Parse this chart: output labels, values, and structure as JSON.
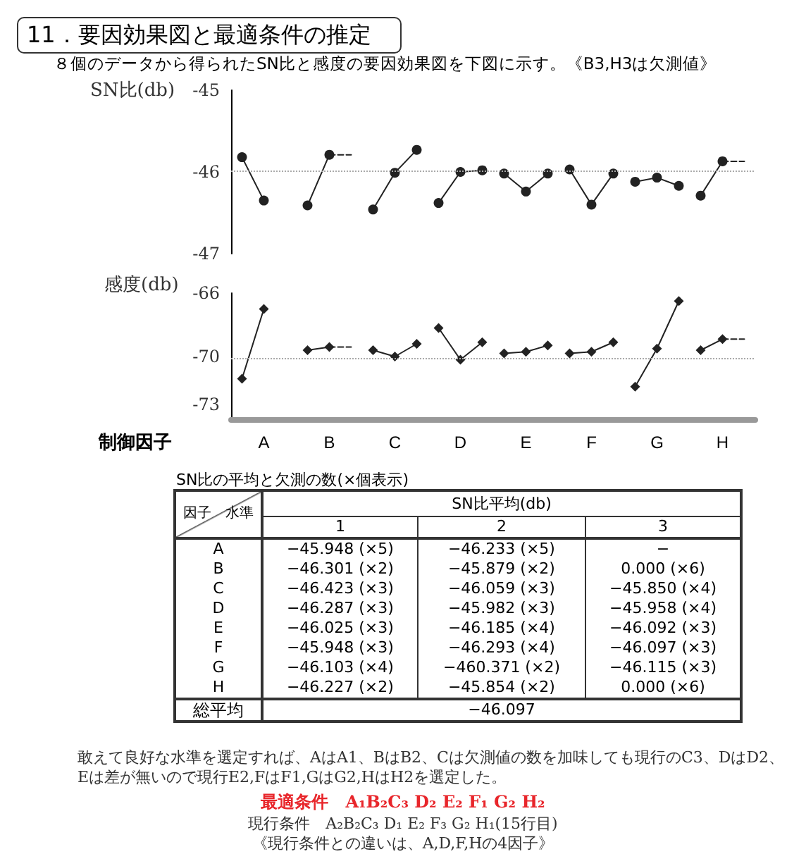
{
  "chart_data": [
    {
      "type": "line",
      "title": "11．要因効果図と最適条件の推定",
      "subtitle": "８個のデータから得られたSN比と感度の要因効果図を下図に示す。《B3,H3は欠測値》",
      "ylabel": "SN比(db)",
      "categories": [
        null,
        null,
        null,
        null,
        null,
        null,
        null,
        null,
        null,
        null,
        null,
        null,
        null,
        null,
        null,
        null,
        null,
        null,
        null,
        null,
        null,
        null,
        null,
        null
      ],
      "ylim": [
        -47,
        -45
      ],
      "yticks": [
        -47,
        -46,
        -45
      ],
      "tick_labels": "y",
      "marker": "circle",
      "ref_lines": [
        {
          "axis": "y",
          "value": -45.98,
          "color": "#aaaaaa",
          "line_style": "dotted"
        }
      ],
      "series": [
        {
          "color": "#222222",
          "values": [
            -45.82,
            -46.35,
            null,
            null,
            null,
            null,
            null,
            null,
            null,
            null,
            null,
            null,
            null,
            null,
            null,
            null,
            null,
            null,
            null,
            null,
            null,
            null,
            null,
            null
          ]
        },
        {
          "color": "#222222",
          "values": [
            null,
            null,
            null,
            -46.41,
            -45.79,
            null,
            null,
            null,
            null,
            null,
            null,
            null,
            null,
            null,
            null,
            null,
            null,
            null,
            null,
            null,
            null,
            null,
            null,
            null
          ]
        },
        {
          "color": "#222222",
          "marker": "none",
          "line_style": "dashed",
          "values": [
            null,
            null,
            null,
            null,
            -45.79,
            -45.79,
            null,
            null,
            null,
            null,
            null,
            null,
            null,
            null,
            null,
            null,
            null,
            null,
            null,
            null,
            null,
            null,
            null,
            null
          ]
        },
        {
          "color": "#222222",
          "values": [
            null,
            null,
            null,
            null,
            null,
            null,
            -46.46,
            -46.01,
            -45.73,
            null,
            null,
            null,
            null,
            null,
            null,
            null,
            null,
            null,
            null,
            null,
            null,
            null,
            null,
            null
          ]
        },
        {
          "color": "#222222",
          "values": [
            null,
            null,
            null,
            null,
            null,
            null,
            null,
            null,
            null,
            -46.38,
            -46.0,
            -45.98,
            null,
            null,
            null,
            null,
            null,
            null,
            null,
            null,
            null,
            null,
            null,
            null
          ]
        },
        {
          "color": "#222222",
          "values": [
            null,
            null,
            null,
            null,
            null,
            null,
            null,
            null,
            null,
            null,
            null,
            null,
            -46.02,
            -46.24,
            -46.02,
            null,
            null,
            null,
            null,
            null,
            null,
            null,
            null,
            null
          ]
        },
        {
          "color": "#222222",
          "values": [
            null,
            null,
            null,
            null,
            null,
            null,
            null,
            null,
            null,
            null,
            null,
            null,
            null,
            null,
            null,
            -45.97,
            -46.4,
            -46.02,
            null,
            null,
            null,
            null,
            null,
            null
          ]
        },
        {
          "color": "#222222",
          "values": [
            null,
            null,
            null,
            null,
            null,
            null,
            null,
            null,
            null,
            null,
            null,
            null,
            null,
            null,
            null,
            null,
            null,
            null,
            -46.12,
            -46.07,
            -46.17,
            null,
            null,
            null
          ]
        },
        {
          "color": "#222222",
          "values": [
            null,
            null,
            null,
            null,
            null,
            null,
            null,
            null,
            null,
            null,
            null,
            null,
            null,
            null,
            null,
            null,
            null,
            null,
            null,
            null,
            null,
            -46.29,
            -45.87,
            null
          ]
        },
        {
          "color": "#222222",
          "marker": "none",
          "line_style": "dashed",
          "values": [
            null,
            null,
            null,
            null,
            null,
            null,
            null,
            null,
            null,
            null,
            null,
            null,
            null,
            null,
            null,
            null,
            null,
            null,
            null,
            null,
            null,
            null,
            -45.87,
            -45.87
          ]
        }
      ]
    },
    {
      "type": "line",
      "ylabel": "感度(db)",
      "xlabel": "制御因子",
      "categories": [
        null,
        "A",
        null,
        null,
        "B",
        null,
        null,
        "C",
        null,
        null,
        "D",
        null,
        null,
        "E",
        null,
        null,
        "F",
        null,
        null,
        "G",
        null,
        null,
        "H",
        null
      ],
      "ylim": [
        -74,
        -66
      ],
      "yticks": [
        -73,
        -70,
        -66
      ],
      "marker": "diamond",
      "ref_lines": [
        {
          "axis": "y",
          "value": -70.1,
          "color": "#aaaaaa",
          "line_style": "dotted"
        }
      ],
      "series": [
        {
          "color": "#222222",
          "values": [
            -71.4,
            -67.0,
            null,
            null,
            null,
            null,
            null,
            null,
            null,
            null,
            null,
            null,
            null,
            null,
            null,
            null,
            null,
            null,
            null,
            null,
            null,
            null,
            null,
            null
          ]
        },
        {
          "color": "#222222",
          "values": [
            null,
            null,
            null,
            -69.6,
            -69.4,
            null,
            null,
            null,
            null,
            null,
            null,
            null,
            null,
            null,
            null,
            null,
            null,
            null,
            null,
            null,
            null,
            null,
            null,
            null
          ]
        },
        {
          "color": "#222222",
          "marker": "none",
          "line_style": "dashed",
          "values": [
            null,
            null,
            null,
            null,
            -69.4,
            -69.4,
            null,
            null,
            null,
            null,
            null,
            null,
            null,
            null,
            null,
            null,
            null,
            null,
            null,
            null,
            null,
            null,
            null,
            null
          ]
        },
        {
          "color": "#222222",
          "values": [
            null,
            null,
            null,
            null,
            null,
            null,
            -69.6,
            -70.0,
            -69.2,
            null,
            null,
            null,
            null,
            null,
            null,
            null,
            null,
            null,
            null,
            null,
            null,
            null,
            null,
            null
          ]
        },
        {
          "color": "#222222",
          "values": [
            null,
            null,
            null,
            null,
            null,
            null,
            null,
            null,
            null,
            -68.2,
            -70.2,
            -69.1,
            null,
            null,
            null,
            null,
            null,
            null,
            null,
            null,
            null,
            null,
            null,
            null
          ]
        },
        {
          "color": "#222222",
          "values": [
            null,
            null,
            null,
            null,
            null,
            null,
            null,
            null,
            null,
            null,
            null,
            null,
            -69.8,
            -69.7,
            -69.3,
            null,
            null,
            null,
            null,
            null,
            null,
            null,
            null,
            null
          ]
        },
        {
          "color": "#222222",
          "values": [
            null,
            null,
            null,
            null,
            null,
            null,
            null,
            null,
            null,
            null,
            null,
            null,
            null,
            null,
            null,
            -69.8,
            -69.7,
            -69.1,
            null,
            null,
            null,
            null,
            null,
            null
          ]
        },
        {
          "color": "#222222",
          "values": [
            null,
            null,
            null,
            null,
            null,
            null,
            null,
            null,
            null,
            null,
            null,
            null,
            null,
            null,
            null,
            null,
            null,
            null,
            -71.9,
            -69.5,
            -66.5,
            null,
            null,
            null
          ]
        },
        {
          "color": "#222222",
          "values": [
            null,
            null,
            null,
            null,
            null,
            null,
            null,
            null,
            null,
            null,
            null,
            null,
            null,
            null,
            null,
            null,
            null,
            null,
            null,
            null,
            null,
            -69.6,
            -68.9,
            null
          ]
        },
        {
          "color": "#222222",
          "marker": "none",
          "line_style": "dashed",
          "values": [
            null,
            null,
            null,
            null,
            null,
            null,
            null,
            null,
            null,
            null,
            null,
            null,
            null,
            null,
            null,
            null,
            null,
            null,
            null,
            null,
            null,
            null,
            -68.9,
            -68.9
          ]
        }
      ]
    },
    {
      "type": "other",
      "title": "SN比の平均と欠測の数(×個表示)",
      "xlabel": "SN比平均(db)",
      "ylabel": "因子　水準",
      "categories": [
        "1",
        "2",
        "3"
      ],
      "y_categories": [
        "A",
        "B",
        "C",
        "D",
        "E",
        "F",
        "G",
        "H",
        "総平均"
      ],
      "cell_labels": [
        [
          "−45.948 (×5)",
          "−46.233 (×5)",
          "−"
        ],
        [
          "−46.301 (×2)",
          "−45.879 (×2)",
          "0.000 (×6)"
        ],
        [
          "−46.423 (×3)",
          "−46.059 (×3)",
          "−45.850 (×4)"
        ],
        [
          "−46.287 (×3)",
          "−45.982 (×3)",
          "−45.958 (×4)"
        ],
        [
          "−46.025 (×3)",
          "−46.185 (×4)",
          "−46.092 (×3)"
        ],
        [
          "−45.948 (×3)",
          "−46.293 (×4)",
          "−46.097 (×3)"
        ],
        [
          "−46.103 (×4)",
          "−460.371 (×2)",
          "−46.115 (×3)"
        ],
        [
          "−46.227 (×2)",
          "−45.854 (×2)",
          "0.000 (×6)"
        ],
        [
          "−46.097",
          null,
          null
        ]
      ],
      "annotations": [
        "敢えて良好な水準を選定すれば、AはA1、BはB2、Cは欠測値の数を加味しても現行のC3、DはD2、",
        "Eは差が無いので現行E2,FはF1,GはG2,HはH2を選定した。",
        "最適条件　A₁B₂C₃ D₂ E₂ F₁ G₂ H₂",
        "現行条件　A₂B₂C₃ D₁ E₂ F₃ G₂ H₁(15行目)",
        "《現行条件との違いは、A,D,F,Hの4因子》"
      ]
    }
  ]
}
